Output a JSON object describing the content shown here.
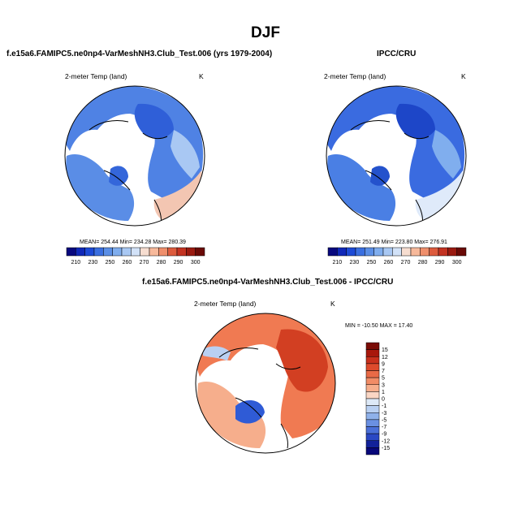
{
  "main_title": "DJF",
  "colors": {
    "land_cold": "#3c6fe0",
    "land_warm": "#f3c2ad",
    "diff_warm": "#e0522e",
    "diff_cold": "#2f5bd6"
  },
  "chart_data": [
    {
      "type": "heatmap",
      "panel": "model",
      "title": "f.e15a6.FAMIPC5.ne0np4-VarMeshNH3.Club_Test.006 (yrs 1979-2004)",
      "variable_label": "2-meter Temp (land)",
      "units": "K",
      "stats": {
        "text": "MEAN= 254.44  Min= 234.28  Max= 280.39",
        "mean": 254.44,
        "min": 234.28,
        "max": 280.39
      },
      "colorbar": {
        "ticks": [
          "210",
          "230",
          "250",
          "260",
          "270",
          "280",
          "290",
          "300"
        ],
        "colors": [
          "#08087e",
          "#1028b8",
          "#1d4ad6",
          "#3a6fe0",
          "#5b8fe6",
          "#80aeee",
          "#a9c8f3",
          "#d2e2f8",
          "#f6ddd0",
          "#f7b99b",
          "#ef8f6c",
          "#dd5b3d",
          "#c33322",
          "#9a1a10",
          "#6a0a06"
        ]
      }
    },
    {
      "type": "heatmap",
      "panel": "observed",
      "title": "IPCC/CRU",
      "variable_label": "2-meter Temp (land)",
      "units": "K",
      "stats": {
        "text": "MEAN= 251.49  Min= 223.80  Max= 276.91",
        "mean": 251.49,
        "min": 223.8,
        "max": 276.91
      },
      "colorbar": {
        "ticks": [
          "210",
          "230",
          "250",
          "260",
          "270",
          "280",
          "290",
          "300"
        ],
        "colors": [
          "#08087e",
          "#1028b8",
          "#1d4ad6",
          "#3a6fe0",
          "#5b8fe6",
          "#80aeee",
          "#a9c8f3",
          "#d2e2f8",
          "#f6ddd0",
          "#f7b99b",
          "#ef8f6c",
          "#dd5b3d",
          "#c33322",
          "#9a1a10",
          "#6a0a06"
        ]
      }
    },
    {
      "type": "heatmap",
      "panel": "difference",
      "title": "f.e15a6.FAMIPC5.ne0np4-VarMeshNH3.Club_Test.006 - IPCC/CRU",
      "variable_label": "2-meter Temp (land)",
      "units": "K",
      "stats": {
        "text": "MIN = -10.50 MAX =  17.40",
        "min": -10.5,
        "max": 17.4
      },
      "colorbar": {
        "orientation": "vertical",
        "ticks": [
          "15",
          "12",
          "9",
          "7",
          "5",
          "3",
          "1",
          "0",
          "-1",
          "-3",
          "-5",
          "-7",
          "-9",
          "-12",
          "-15"
        ],
        "colors": [
          "#7a0c06",
          "#a8180c",
          "#c8301c",
          "#dd4a2c",
          "#e96a46",
          "#f18c66",
          "#f6ae8c",
          "#fad6c4",
          "#dde9f7",
          "#b9d0f2",
          "#8fb1ea",
          "#6a90e2",
          "#4a6fd8",
          "#2a48c4",
          "#12229a",
          "#08087a"
        ]
      }
    }
  ]
}
